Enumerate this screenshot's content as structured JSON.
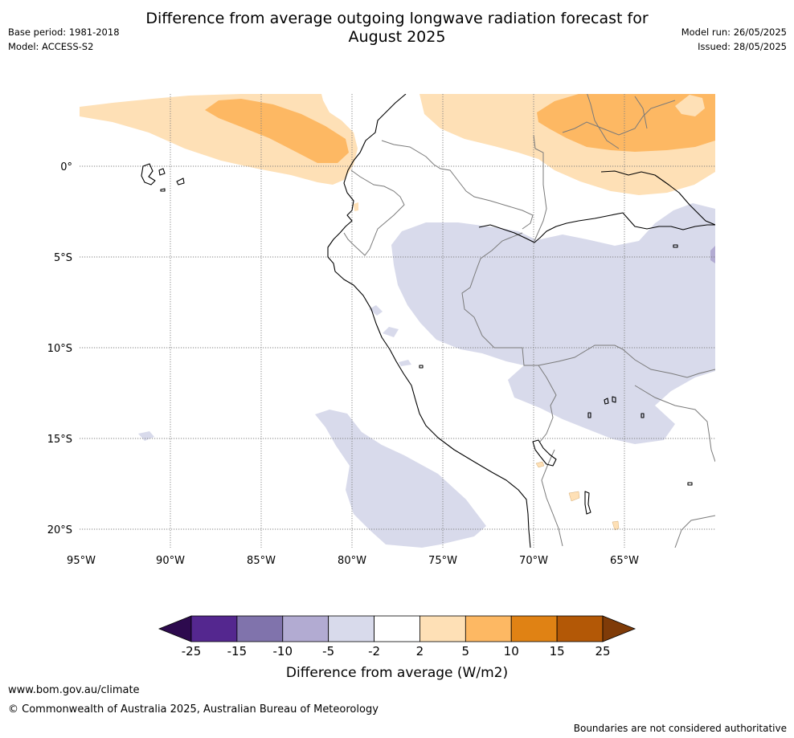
{
  "title_line1": "Difference from average outgoing longwave radiation forecast for",
  "title_line2": "August 2025",
  "meta_left": {
    "base_period": "Base period: 1981-2018",
    "model": "Model: ACCESS-S2"
  },
  "meta_right": {
    "model_run": "Model run: 26/05/2025",
    "issued": "Issued: 28/05/2025"
  },
  "lat_labels": [
    "0°",
    "5°S",
    "10°S",
    "15°S",
    "20°S"
  ],
  "lon_labels": [
    "95°W",
    "90°W",
    "85°W",
    "80°W",
    "75°W",
    "70°W",
    "65°W"
  ],
  "colorbar": {
    "label": "Difference from average (W/m2)",
    "ticks": [
      "-25",
      "-15",
      "-10",
      "-5",
      "-2",
      "2",
      "5",
      "10",
      "15",
      "25"
    ],
    "colors": [
      "#2d0a4e",
      "#54278f",
      "#8073ac",
      "#b2abd2",
      "#d8daeb",
      "#ffffff",
      "#fee0b6",
      "#fdb863",
      "#e08214",
      "#b35806",
      "#7f3b08"
    ]
  },
  "footer": {
    "url": "www.bom.gov.au/climate",
    "copyright": "© Commonwealth of Australia 2025, Australian Bureau of Meteorology",
    "disclaimer": "Boundaries are not considered authoritative"
  }
}
